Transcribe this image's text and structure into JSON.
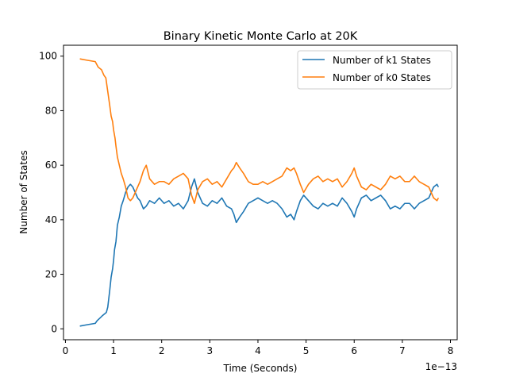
{
  "chart_data": {
    "type": "line",
    "title": "Binary Kinetic Monte Carlo at 20K",
    "xlabel": "Time (Seconds)",
    "ylabel": "Number of States",
    "x_offset_label": "1e−13",
    "xlim": [
      -0.04,
      8.14
    ],
    "ylim": [
      -4,
      104
    ],
    "x_ticks": [
      0,
      1,
      2,
      3,
      4,
      5,
      6,
      7,
      8
    ],
    "x_tick_labels": [
      "0",
      "1",
      "2",
      "3",
      "4",
      "5",
      "6",
      "7",
      "8"
    ],
    "y_ticks": [
      0,
      20,
      40,
      60,
      80,
      100
    ],
    "y_tick_labels": [
      "0",
      "20",
      "40",
      "60",
      "80",
      "100"
    ],
    "grid": false,
    "legend_position": "upper right",
    "series": [
      {
        "name": "Number of k1 States",
        "color": "#1f77b4",
        "points": [
          [
            0.3,
            1
          ],
          [
            0.45,
            1.5
          ],
          [
            0.62,
            2
          ],
          [
            0.66,
            3
          ],
          [
            0.72,
            4
          ],
          [
            0.78,
            5
          ],
          [
            0.85,
            6
          ],
          [
            0.88,
            8
          ],
          [
            0.92,
            14
          ],
          [
            0.95,
            19
          ],
          [
            0.98,
            22
          ],
          [
            1.0,
            25
          ],
          [
            1.02,
            29
          ],
          [
            1.05,
            32
          ],
          [
            1.08,
            38
          ],
          [
            1.12,
            41
          ],
          [
            1.16,
            45
          ],
          [
            1.2,
            47
          ],
          [
            1.25,
            50
          ],
          [
            1.3,
            52
          ],
          [
            1.35,
            53
          ],
          [
            1.4,
            52
          ],
          [
            1.45,
            50
          ],
          [
            1.5,
            48
          ],
          [
            1.55,
            47
          ],
          [
            1.62,
            44
          ],
          [
            1.68,
            45
          ],
          [
            1.75,
            47
          ],
          [
            1.85,
            46
          ],
          [
            1.95,
            48
          ],
          [
            2.05,
            46
          ],
          [
            2.15,
            47
          ],
          [
            2.25,
            45
          ],
          [
            2.35,
            46
          ],
          [
            2.45,
            44
          ],
          [
            2.55,
            47
          ],
          [
            2.62,
            52
          ],
          [
            2.68,
            55
          ],
          [
            2.75,
            50
          ],
          [
            2.85,
            46
          ],
          [
            2.95,
            45
          ],
          [
            3.05,
            47
          ],
          [
            3.15,
            46
          ],
          [
            3.25,
            48
          ],
          [
            3.35,
            45
          ],
          [
            3.45,
            44
          ],
          [
            3.5,
            42
          ],
          [
            3.55,
            39
          ],
          [
            3.62,
            41
          ],
          [
            3.7,
            43
          ],
          [
            3.8,
            46
          ],
          [
            3.9,
            47
          ],
          [
            4.0,
            48
          ],
          [
            4.1,
            47
          ],
          [
            4.2,
            46
          ],
          [
            4.3,
            47
          ],
          [
            4.4,
            46
          ],
          [
            4.5,
            44
          ],
          [
            4.6,
            41
          ],
          [
            4.68,
            42
          ],
          [
            4.75,
            40
          ],
          [
            4.8,
            43
          ],
          [
            4.88,
            47
          ],
          [
            4.95,
            49
          ],
          [
            5.05,
            47
          ],
          [
            5.15,
            45
          ],
          [
            5.25,
            44
          ],
          [
            5.35,
            46
          ],
          [
            5.45,
            45
          ],
          [
            5.55,
            46
          ],
          [
            5.65,
            45
          ],
          [
            5.75,
            48
          ],
          [
            5.85,
            46
          ],
          [
            5.95,
            43
          ],
          [
            6.0,
            41
          ],
          [
            6.05,
            44
          ],
          [
            6.15,
            48
          ],
          [
            6.25,
            49
          ],
          [
            6.35,
            47
          ],
          [
            6.45,
            48
          ],
          [
            6.55,
            49
          ],
          [
            6.65,
            47
          ],
          [
            6.75,
            44
          ],
          [
            6.85,
            45
          ],
          [
            6.95,
            44
          ],
          [
            7.05,
            46
          ],
          [
            7.15,
            46
          ],
          [
            7.25,
            44
          ],
          [
            7.35,
            46
          ],
          [
            7.45,
            47
          ],
          [
            7.55,
            48
          ],
          [
            7.65,
            52
          ],
          [
            7.72,
            53
          ],
          [
            7.75,
            52
          ]
        ]
      },
      {
        "name": "Number of k0 States",
        "color": "#ff7f0e",
        "points": [
          [
            0.3,
            99
          ],
          [
            0.45,
            98.5
          ],
          [
            0.62,
            98
          ],
          [
            0.68,
            96
          ],
          [
            0.75,
            95
          ],
          [
            0.8,
            93
          ],
          [
            0.84,
            92
          ],
          [
            0.88,
            87
          ],
          [
            0.92,
            82
          ],
          [
            0.95,
            78
          ],
          [
            0.98,
            76
          ],
          [
            1.0,
            73
          ],
          [
            1.03,
            70
          ],
          [
            1.05,
            67
          ],
          [
            1.08,
            63
          ],
          [
            1.12,
            60
          ],
          [
            1.16,
            57
          ],
          [
            1.2,
            55
          ],
          [
            1.25,
            52
          ],
          [
            1.3,
            48
          ],
          [
            1.35,
            47
          ],
          [
            1.4,
            48
          ],
          [
            1.45,
            50
          ],
          [
            1.5,
            52
          ],
          [
            1.55,
            54
          ],
          [
            1.62,
            58
          ],
          [
            1.68,
            60
          ],
          [
            1.75,
            55
          ],
          [
            1.85,
            53
          ],
          [
            1.95,
            54
          ],
          [
            2.05,
            54
          ],
          [
            2.15,
            53
          ],
          [
            2.25,
            55
          ],
          [
            2.35,
            56
          ],
          [
            2.45,
            57
          ],
          [
            2.55,
            55
          ],
          [
            2.62,
            49
          ],
          [
            2.68,
            46
          ],
          [
            2.75,
            51
          ],
          [
            2.85,
            54
          ],
          [
            2.95,
            55
          ],
          [
            3.05,
            53
          ],
          [
            3.15,
            54
          ],
          [
            3.25,
            52
          ],
          [
            3.35,
            55
          ],
          [
            3.45,
            58
          ],
          [
            3.5,
            59
          ],
          [
            3.55,
            61
          ],
          [
            3.62,
            59
          ],
          [
            3.7,
            57
          ],
          [
            3.8,
            54
          ],
          [
            3.9,
            53
          ],
          [
            4.0,
            53
          ],
          [
            4.1,
            54
          ],
          [
            4.2,
            53
          ],
          [
            4.3,
            54
          ],
          [
            4.4,
            55
          ],
          [
            4.5,
            56
          ],
          [
            4.6,
            59
          ],
          [
            4.68,
            58
          ],
          [
            4.75,
            59
          ],
          [
            4.8,
            57
          ],
          [
            4.88,
            53
          ],
          [
            4.95,
            50
          ],
          [
            5.05,
            53
          ],
          [
            5.15,
            55
          ],
          [
            5.25,
            56
          ],
          [
            5.35,
            54
          ],
          [
            5.45,
            55
          ],
          [
            5.55,
            54
          ],
          [
            5.65,
            55
          ],
          [
            5.75,
            52
          ],
          [
            5.85,
            54
          ],
          [
            5.95,
            57
          ],
          [
            6.0,
            59
          ],
          [
            6.05,
            56
          ],
          [
            6.15,
            52
          ],
          [
            6.25,
            51
          ],
          [
            6.35,
            53
          ],
          [
            6.45,
            52
          ],
          [
            6.55,
            51
          ],
          [
            6.65,
            53
          ],
          [
            6.75,
            56
          ],
          [
            6.85,
            55
          ],
          [
            6.95,
            56
          ],
          [
            7.05,
            54
          ],
          [
            7.15,
            54
          ],
          [
            7.25,
            56
          ],
          [
            7.35,
            54
          ],
          [
            7.45,
            53
          ],
          [
            7.55,
            52
          ],
          [
            7.65,
            48
          ],
          [
            7.72,
            47
          ],
          [
            7.75,
            48
          ]
        ]
      }
    ]
  }
}
